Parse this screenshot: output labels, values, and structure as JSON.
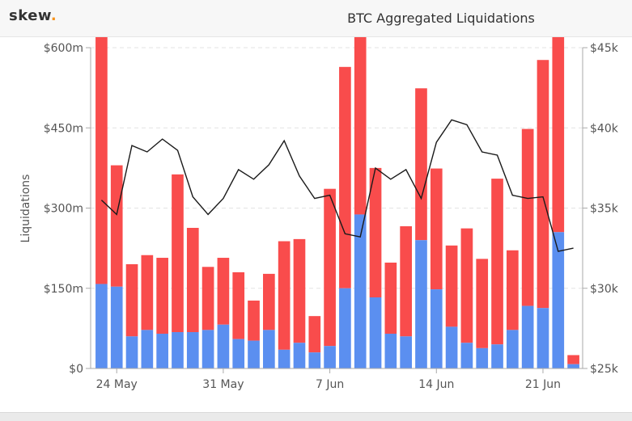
{
  "header": {
    "logo_text": "skew",
    "logo_dot": ".",
    "title": "BTC Aggregated Liquidations"
  },
  "colors": {
    "long_liquidations": "#f94c4c",
    "short_liquidations": "#5b8ff0",
    "price_line": "#1a1a1a",
    "logo_accent": "#f7931a"
  },
  "chart_data": {
    "type": "bar",
    "title": "BTC Aggregated Liquidations",
    "ylabel": "Liquidations",
    "y_left": {
      "range": [
        0,
        600
      ],
      "unit": "$m",
      "ticks": [
        "$0",
        "$150m",
        "$300m",
        "$450m",
        "$600m"
      ]
    },
    "y_right": {
      "range": [
        25000,
        45000
      ],
      "ticks": [
        "$25k",
        "$30k",
        "$35k",
        "$40k",
        "$45k"
      ]
    },
    "x_ticks": [
      "24 May",
      "31 May",
      "7 Jun",
      "14 Jun",
      "21 Jun"
    ],
    "x_tick_indices": [
      1,
      8,
      15,
      22,
      29
    ],
    "stacked": true,
    "grid": true,
    "series": [
      {
        "values": [
          158,
          153,
          60,
          72,
          65,
          68,
          68,
          72,
          82,
          55,
          52,
          72,
          35,
          48,
          30,
          42,
          150,
          288,
          133,
          65,
          60,
          240,
          148,
          78,
          48,
          38,
          45,
          72,
          117,
          113,
          255,
          8
        ]
      },
      {
        "values": [
          466,
          227,
          135,
          140,
          142,
          295,
          195,
          118,
          125,
          125,
          75,
          105,
          203,
          194,
          68,
          294,
          414,
          358,
          242,
          133,
          206,
          284,
          226,
          152,
          214,
          167,
          310,
          149,
          331,
          464,
          545,
          17
        ]
      },
      {
        "type": "line",
        "values": [
          35500,
          34600,
          38900,
          38500,
          39300,
          38600,
          35700,
          34600,
          35600,
          37400,
          36800,
          37700,
          39200,
          37000,
          35600,
          35800,
          33400,
          33200,
          37500,
          36800,
          37400,
          35600,
          39100,
          40500,
          40200,
          38500,
          38300,
          35800,
          35600,
          35700,
          32300,
          32500
        ]
      }
    ]
  }
}
